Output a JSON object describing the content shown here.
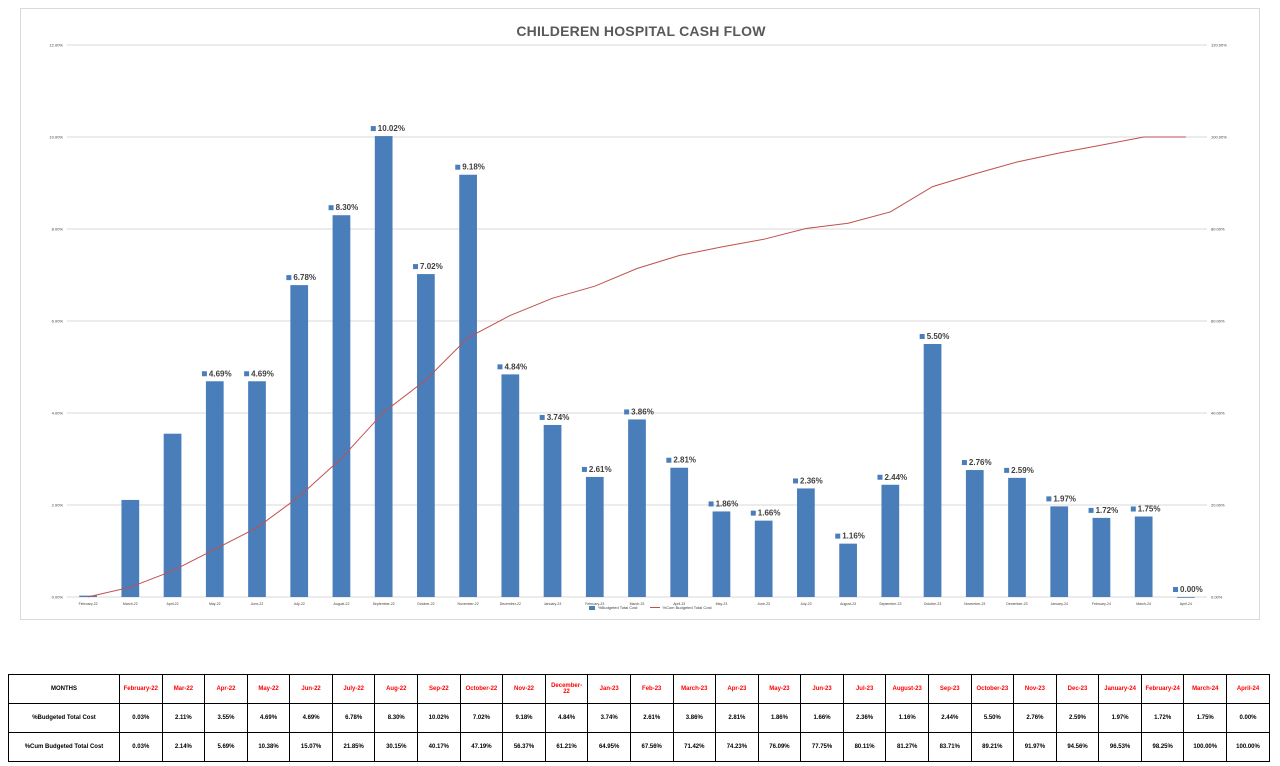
{
  "colors": {
    "bar": "#4a7ebb",
    "line": "#c0504d",
    "grid": "#d9d9d9",
    "month_header": "#ff0000"
  },
  "chart_data": {
    "type": "bar",
    "title": "CHILDEREN HOSPITAL CASH FLOW",
    "categories": [
      "February-22",
      "March-22",
      "April-22",
      "May-22",
      "June-22",
      "July-22",
      "August-22",
      "September-22",
      "October-22",
      "November-22",
      "December-22",
      "January-23",
      "February-23",
      "March-23",
      "April-23",
      "May-23",
      "June-23",
      "July-23",
      "August-23",
      "September-23",
      "October-23",
      "November-23",
      "December-23",
      "January-24",
      "February-24",
      "March-24",
      "April-24"
    ],
    "series": [
      {
        "name": "%Budgeted Total Cost",
        "kind": "bar",
        "axis": "left",
        "values": [
          0.03,
          2.11,
          3.55,
          4.69,
          4.69,
          6.78,
          8.3,
          10.02,
          7.02,
          9.18,
          4.84,
          3.74,
          2.61,
          3.86,
          2.81,
          1.86,
          1.66,
          2.36,
          1.16,
          2.44,
          5.5,
          2.76,
          2.59,
          1.97,
          1.72,
          1.75,
          0.0
        ],
        "labels": [
          "",
          "",
          "",
          "4.69%",
          "4.69%",
          "6.78%",
          "8.30%",
          "10.02%",
          "7.02%",
          "9.18%",
          "4.84%",
          "3.74%",
          "2.61%",
          "3.86%",
          "2.81%",
          "1.86%",
          "1.66%",
          "2.36%",
          "1.16%",
          "2.44%",
          "5.50%",
          "2.76%",
          "2.59%",
          "1.97%",
          "1.72%",
          "1.75%",
          "0.00%"
        ]
      },
      {
        "name": "%Cum Budgeted Total Cost",
        "kind": "line",
        "axis": "right",
        "values": [
          0.03,
          2.14,
          5.69,
          10.38,
          15.07,
          21.85,
          30.15,
          40.17,
          47.19,
          56.37,
          61.21,
          64.95,
          67.56,
          71.42,
          74.23,
          76.09,
          77.75,
          80.11,
          81.27,
          83.71,
          89.21,
          91.97,
          94.56,
          96.53,
          98.25,
          100.0,
          100.0
        ]
      }
    ],
    "y_left": {
      "min": 0,
      "max": 12,
      "ticks": [
        "0.00%",
        "2.00%",
        "4.00%",
        "6.00%",
        "8.00%",
        "10.00%",
        "12.00%"
      ]
    },
    "y_right": {
      "min": 0,
      "max": 120,
      "ticks": [
        "0.00%",
        "20.00%",
        "40.00%",
        "60.00%",
        "80.00%",
        "100.00%",
        "120.00%"
      ]
    },
    "grid": true,
    "legend_position": "bottom"
  },
  "table": {
    "header_label": "MONTHS",
    "months": [
      "February-22",
      "Mar-22",
      "Apr-22",
      "May-22",
      "Jun-22",
      "July-22",
      "Aug-22",
      "Sep-22",
      "October-22",
      "Nov-22",
      "December-22",
      "Jan-23",
      "Feb-23",
      "March-23",
      "Apr-23",
      "May-23",
      "Jun-23",
      "Jul-23",
      "August-23",
      "Sep-23",
      "October-23",
      "Nov-23",
      "Dec-23",
      "January-24",
      "February-24",
      "March-24",
      "April-24"
    ],
    "rows": [
      {
        "label": "%Budgeted Total Cost",
        "values": [
          "0.03%",
          "2.11%",
          "3.55%",
          "4.69%",
          "4.69%",
          "6.78%",
          "8.30%",
          "10.02%",
          "7.02%",
          "9.18%",
          "4.84%",
          "3.74%",
          "2.61%",
          "3.86%",
          "2.81%",
          "1.86%",
          "1.66%",
          "2.36%",
          "1.16%",
          "2.44%",
          "5.50%",
          "2.76%",
          "2.59%",
          "1.97%",
          "1.72%",
          "1.75%",
          "0.00%"
        ]
      },
      {
        "label": "%Cum Budgeted Total Cost",
        "values": [
          "0.03%",
          "2.14%",
          "5.69%",
          "10.38%",
          "15.07%",
          "21.85%",
          "30.15%",
          "40.17%",
          "47.19%",
          "56.37%",
          "61.21%",
          "64.95%",
          "67.56%",
          "71.42%",
          "74.23%",
          "76.09%",
          "77.75%",
          "80.11%",
          "81.27%",
          "83.71%",
          "89.21%",
          "91.97%",
          "94.56%",
          "96.53%",
          "98.25%",
          "100.00%",
          "100.00%"
        ]
      }
    ]
  }
}
